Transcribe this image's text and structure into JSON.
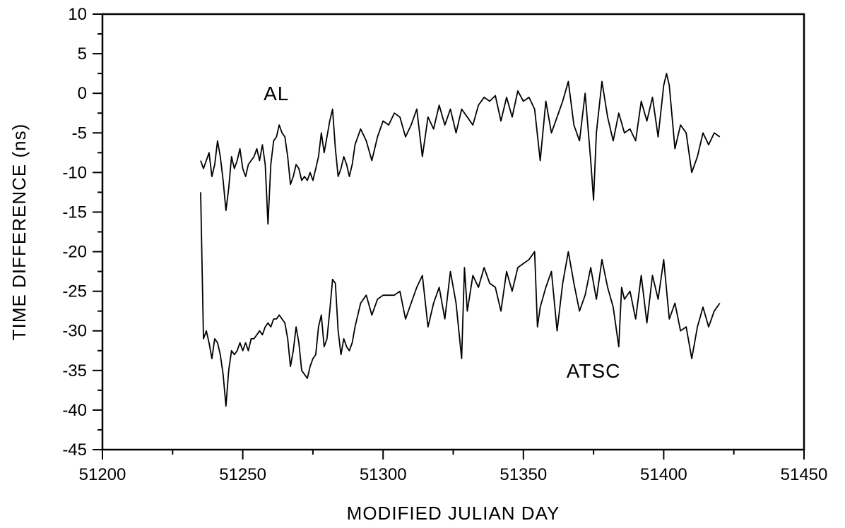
{
  "chart_data": {
    "type": "line",
    "xlabel": "MODIFIED JULIAN DAY",
    "ylabel": "TIME DIFFERENCE (ns)",
    "xlim": [
      51200,
      51450
    ],
    "ylim": [
      -45,
      10
    ],
    "x_ticks": [
      51200,
      51250,
      51300,
      51350,
      51400,
      51450
    ],
    "y_ticks": [
      10,
      5,
      0,
      -5,
      -10,
      -15,
      -20,
      -25,
      -30,
      -35,
      -40,
      -45
    ],
    "x_minor_step": 25,
    "y_minor_step": 2.5,
    "grid": false,
    "annotations": [
      {
        "text": "AL",
        "x": 51262,
        "y": 0
      },
      {
        "text": "ATSC",
        "x": 51375,
        "y": -35
      }
    ],
    "series": [
      {
        "x": [
          51235,
          51236,
          51237,
          51238,
          51239,
          51240,
          51241,
          51242,
          51243,
          51244,
          51245,
          51246,
          51247,
          51248,
          51249,
          51250,
          51251,
          51252,
          51253,
          51254,
          51255,
          51256,
          51257,
          51258,
          51259,
          51260,
          51261,
          51262,
          51263,
          51264,
          51265,
          51266,
          51267,
          51268,
          51269,
          51270,
          51271,
          51272,
          51273,
          51274,
          51275,
          51276,
          51277,
          51278,
          51279,
          51280,
          51281,
          51282,
          51283,
          51284,
          51285,
          51286,
          51287,
          51288,
          51289,
          51290,
          51292,
          51294,
          51296,
          51298,
          51300,
          51302,
          51304,
          51306,
          51308,
          51310,
          51312,
          51314,
          51316,
          51318,
          51320,
          51322,
          51324,
          51326,
          51328,
          51330,
          51332,
          51334,
          51336,
          51338,
          51340,
          51342,
          51344,
          51346,
          51348,
          51350,
          51352,
          51354,
          51356,
          51358,
          51360,
          51362,
          51364,
          51366,
          51368,
          51370,
          51372,
          51374,
          51375,
          51376,
          51378,
          51380,
          51382,
          51384,
          51386,
          51388,
          51390,
          51392,
          51394,
          51396,
          51398,
          51400,
          51401,
          51402,
          51404,
          51406,
          51408,
          51410,
          51412,
          51414,
          51416,
          51418,
          51420
        ],
        "y": [
          -8.5,
          -9.5,
          -8.5,
          -7.5,
          -10.5,
          -9.0,
          -6.0,
          -8.0,
          -11.0,
          -14.8,
          -12.0,
          -8.0,
          -9.5,
          -8.5,
          -7.0,
          -9.5,
          -10.5,
          -9.0,
          -8.5,
          -8.0,
          -7.0,
          -8.5,
          -6.5,
          -9.0,
          -16.5,
          -9.0,
          -6.0,
          -5.5,
          -4.0,
          -5.0,
          -5.5,
          -8.0,
          -11.5,
          -10.5,
          -9.0,
          -9.5,
          -11.0,
          -10.5,
          -11.0,
          -10.0,
          -11.0,
          -9.5,
          -8.0,
          -5.0,
          -7.5,
          -5.5,
          -3.5,
          -2.0,
          -7.0,
          -10.5,
          -9.5,
          -8.0,
          -9.0,
          -10.5,
          -9.0,
          -6.5,
          -4.5,
          -6.0,
          -8.5,
          -5.5,
          -3.5,
          -4.0,
          -2.5,
          -3.0,
          -5.5,
          -4.0,
          -2.0,
          -8.0,
          -3.0,
          -4.5,
          -1.5,
          -4.0,
          -2.0,
          -5.0,
          -2.0,
          -3.0,
          -4.0,
          -1.5,
          -0.5,
          -1.0,
          -0.3,
          -3.5,
          -0.5,
          -3.0,
          0.3,
          -1.0,
          -0.5,
          -2.0,
          -8.5,
          -1.0,
          -5.0,
          -3.0,
          -1.0,
          1.5,
          -4.0,
          -6.0,
          0.0,
          -8.5,
          -13.5,
          -5.0,
          1.5,
          -3.0,
          -6.0,
          -2.5,
          -5.0,
          -4.5,
          -6.0,
          -1.0,
          -3.5,
          -0.5,
          -5.5,
          1.0,
          2.5,
          1.0,
          -7.0,
          -4.0,
          -5.0,
          -10.0,
          -8.0,
          -5.0,
          -6.5,
          -5.0,
          -5.5
        ]
      },
      {
        "x": [
          51235,
          51236,
          51237,
          51238,
          51239,
          51240,
          51241,
          51242,
          51243,
          51244,
          51245,
          51246,
          51247,
          51248,
          51249,
          51250,
          51251,
          51252,
          51253,
          51254,
          51255,
          51256,
          51257,
          51258,
          51259,
          51260,
          51261,
          51262,
          51263,
          51264,
          51265,
          51266,
          51267,
          51268,
          51269,
          51270,
          51271,
          51272,
          51273,
          51274,
          51275,
          51276,
          51277,
          51278,
          51279,
          51280,
          51281,
          51282,
          51283,
          51284,
          51285,
          51286,
          51287,
          51288,
          51289,
          51290,
          51292,
          51294,
          51296,
          51298,
          51300,
          51302,
          51304,
          51306,
          51308,
          51310,
          51312,
          51314,
          51316,
          51318,
          51320,
          51322,
          51324,
          51326,
          51328,
          51329,
          51330,
          51332,
          51334,
          51336,
          51338,
          51340,
          51342,
          51344,
          51346,
          51348,
          51350,
          51352,
          51354,
          51355,
          51356,
          51358,
          51360,
          51362,
          51364,
          51366,
          51368,
          51370,
          51372,
          51374,
          51376,
          51378,
          51380,
          51382,
          51384,
          51385,
          51386,
          51388,
          51390,
          51392,
          51394,
          51396,
          51398,
          51400,
          51402,
          51404,
          51406,
          51408,
          51410,
          51412,
          51414,
          51416,
          51418,
          51420
        ],
        "y": [
          -12.5,
          -31.0,
          -30.0,
          -31.5,
          -33.5,
          -31.0,
          -31.5,
          -33.0,
          -35.5,
          -39.5,
          -35.0,
          -32.5,
          -33.0,
          -32.5,
          -31.5,
          -32.5,
          -31.5,
          -32.5,
          -31.0,
          -31.0,
          -30.5,
          -30.0,
          -30.5,
          -29.5,
          -29.0,
          -29.5,
          -28.5,
          -28.5,
          -28.0,
          -28.5,
          -29.0,
          -31.0,
          -34.5,
          -32.5,
          -29.5,
          -31.5,
          -35.0,
          -35.5,
          -36.0,
          -34.5,
          -33.5,
          -33.0,
          -29.5,
          -28.0,
          -32.0,
          -31.0,
          -27.5,
          -23.5,
          -24.0,
          -30.0,
          -33.0,
          -31.0,
          -32.0,
          -32.5,
          -31.5,
          -29.5,
          -26.5,
          -25.5,
          -28.0,
          -26.0,
          -25.5,
          -25.5,
          -25.5,
          -25.0,
          -28.5,
          -26.5,
          -24.5,
          -23.0,
          -29.5,
          -26.5,
          -24.5,
          -28.5,
          -22.5,
          -26.5,
          -33.5,
          -22.0,
          -27.5,
          -23.0,
          -24.5,
          -22.0,
          -24.0,
          -24.5,
          -27.5,
          -22.5,
          -25.0,
          -22.0,
          -21.5,
          -21.0,
          -20.0,
          -29.5,
          -27.0,
          -24.5,
          -22.5,
          -30.0,
          -24.0,
          -20.0,
          -24.0,
          -27.5,
          -25.5,
          -22.0,
          -26.0,
          -21.0,
          -24.5,
          -27.0,
          -32.0,
          -24.5,
          -26.0,
          -25.0,
          -28.5,
          -23.0,
          -29.0,
          -23.0,
          -26.0,
          -21.0,
          -28.5,
          -26.5,
          -30.0,
          -29.5,
          -33.5,
          -29.5,
          -27.0,
          -29.5,
          -27.5,
          -26.5
        ]
      }
    ]
  }
}
